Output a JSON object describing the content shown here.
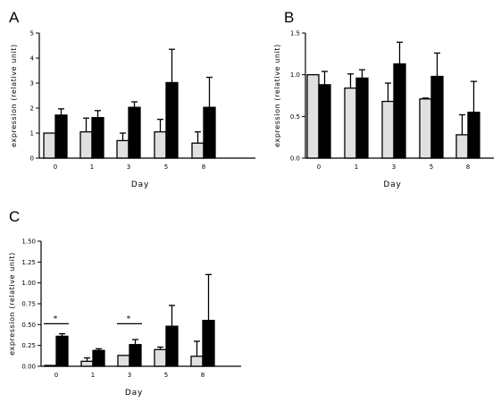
{
  "chart_data": [
    {
      "panel": "A",
      "type": "bar",
      "categories": [
        "0",
        "1",
        "3",
        "5",
        "8"
      ],
      "xlabel": "Day",
      "ylabel": "expression (relative unit)",
      "ylim": [
        0,
        5
      ],
      "yticks": [
        "0",
        "1",
        "2",
        "3",
        "4",
        "5"
      ],
      "yticks_values": [
        0,
        1,
        2,
        3,
        4,
        5
      ],
      "grid": false,
      "series": [
        {
          "color": "#e0e0e0",
          "values": [
            1.0,
            1.05,
            0.7,
            1.05,
            0.6
          ],
          "errors": [
            0,
            0.55,
            0.3,
            0.5,
            0.45
          ]
        },
        {
          "color": "#000000",
          "values": [
            1.72,
            1.62,
            2.03,
            3.02,
            2.03
          ],
          "errors": [
            0.25,
            0.28,
            0.22,
            1.33,
            1.2
          ]
        }
      ],
      "annotations": []
    },
    {
      "panel": "B",
      "type": "bar",
      "categories": [
        "0",
        "1",
        "3",
        "5",
        "8"
      ],
      "xlabel": "Day",
      "ylabel": "expression (relative unit)",
      "ylim": [
        0,
        1.5
      ],
      "yticks": [
        "0.0",
        "0.5",
        "1.0",
        "1.5"
      ],
      "yticks_values": [
        0,
        0.5,
        1.0,
        1.5
      ],
      "grid": false,
      "series": [
        {
          "color": "#e0e0e0",
          "values": [
            1.0,
            0.84,
            0.68,
            0.71,
            0.28
          ],
          "errors": [
            0,
            0.17,
            0.22,
            0.01,
            0.24
          ]
        },
        {
          "color": "#000000",
          "values": [
            0.88,
            0.96,
            1.13,
            0.98,
            0.55
          ],
          "errors": [
            0.16,
            0.1,
            0.26,
            0.28,
            0.37
          ]
        }
      ],
      "annotations": []
    },
    {
      "panel": "C",
      "type": "bar",
      "categories": [
        "0",
        "1",
        "3",
        "5",
        "8"
      ],
      "xlabel": "Day",
      "ylabel": "expression (relative unit)",
      "ylim": [
        0,
        1.5
      ],
      "yticks": [
        "0.00",
        "0.25",
        "0.50",
        "0.75",
        "1.00",
        "1.25",
        "1.50"
      ],
      "yticks_values": [
        0,
        0.25,
        0.5,
        0.75,
        1.0,
        1.25,
        1.5
      ],
      "grid": false,
      "series": [
        {
          "color": "#e0e0e0",
          "values": [
            0.01,
            0.06,
            0.13,
            0.2,
            0.12
          ],
          "errors": [
            0,
            0.04,
            0,
            0.03,
            0.18
          ]
        },
        {
          "color": "#000000",
          "values": [
            0.36,
            0.19,
            0.26,
            0.48,
            0.55
          ],
          "errors": [
            0.03,
            0.02,
            0.06,
            0.25,
            0.55
          ]
        }
      ],
      "annotations": [
        {
          "text": "*",
          "category_index": 0,
          "y": 0.51
        },
        {
          "text": "*",
          "category_index": 2,
          "y": 0.51
        }
      ]
    }
  ]
}
